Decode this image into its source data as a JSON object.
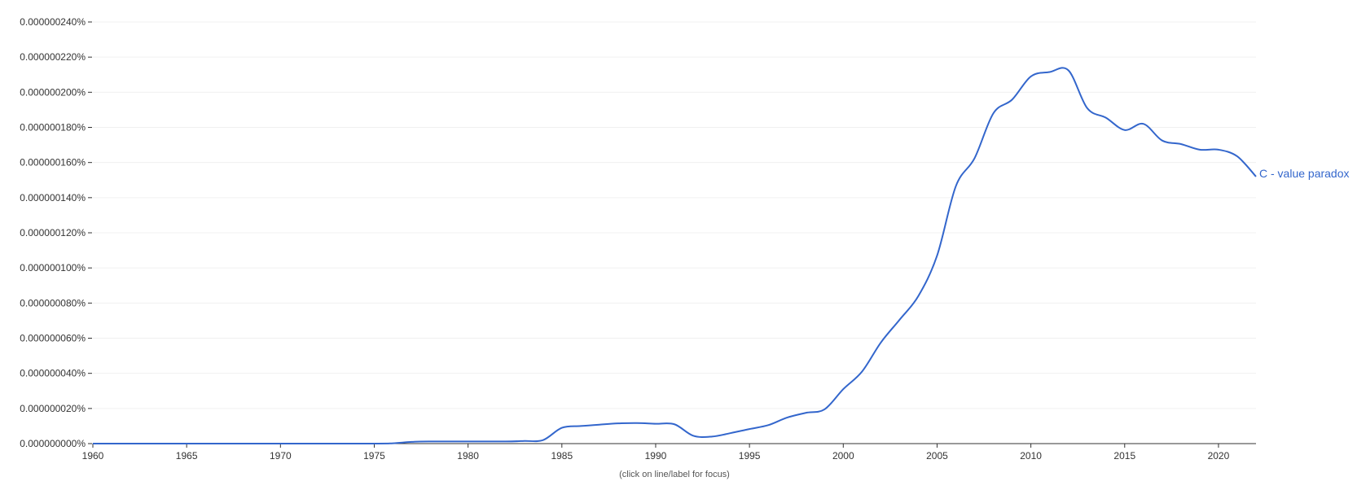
{
  "chart_data": {
    "type": "line",
    "title": "",
    "xlabel": "",
    "ylabel": "",
    "xlim": [
      1960,
      2022
    ],
    "ylim": [
      0,
      2.4e-07
    ],
    "grid": true,
    "legend": "inline at line end",
    "x_ticks": [
      "1960",
      "1965",
      "1970",
      "1975",
      "1980",
      "1985",
      "1990",
      "1995",
      "2000",
      "2005",
      "2010",
      "2015",
      "2020"
    ],
    "y_ticks": [
      "0.000000000%",
      "0.000000020%",
      "0.000000040%",
      "0.000000060%",
      "0.000000080%",
      "0.000000100%",
      "0.000000120%",
      "0.000000140%",
      "0.000000160%",
      "0.000000180%",
      "0.000000200%",
      "0.000000220%",
      "0.000000240%"
    ],
    "series": [
      {
        "name": "C - value paradox",
        "color": "#3366cc",
        "x": [
          1960,
          1965,
          1970,
          1975,
          1976,
          1977,
          1978,
          1980,
          1982,
          1983,
          1984,
          1985,
          1986,
          1987,
          1988,
          1989,
          1990,
          1991,
          1992,
          1993,
          1994,
          1995,
          1996,
          1997,
          1998,
          1999,
          2000,
          2001,
          2002,
          2003,
          2004,
          2005,
          2006,
          2007,
          2008,
          2009,
          2010,
          2011,
          2012,
          2013,
          2014,
          2015,
          2016,
          2017,
          2018,
          2019,
          2020,
          2021,
          2022
        ],
        "values": [
          0,
          0,
          0,
          0,
          2e-10,
          1e-09,
          1.2e-09,
          1.2e-09,
          1.2e-09,
          1.5e-09,
          2e-09,
          9e-09,
          1e-08,
          1.08e-08,
          1.15e-08,
          1.17e-08,
          1.13e-08,
          1.1e-08,
          4.5e-09,
          4e-09,
          6e-09,
          8.3e-09,
          1.05e-08,
          1.48e-08,
          1.75e-08,
          1.95e-08,
          3.1e-08,
          4.1e-08,
          5.75e-08,
          7.05e-08,
          8.4e-08,
          1.07e-07,
          1.465e-07,
          1.625e-07,
          1.88e-07,
          1.958e-07,
          2.09e-07,
          2.115e-07,
          2.125e-07,
          1.91e-07,
          1.855e-07,
          1.785e-07,
          1.82e-07,
          1.725e-07,
          1.705e-07,
          1.673e-07,
          1.673e-07,
          1.635e-07,
          1.52e-07
        ]
      }
    ]
  },
  "footnote": "(click on line/label for focus)"
}
